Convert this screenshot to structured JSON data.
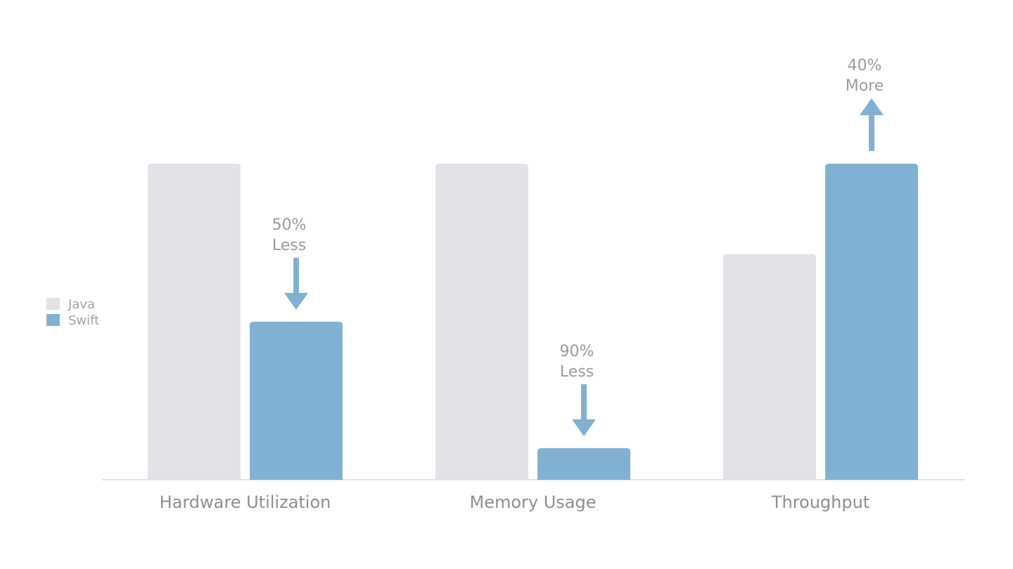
{
  "chart_data": {
    "type": "bar",
    "categories": [
      "Hardware Utilization",
      "Memory Usage",
      "Throughput"
    ],
    "series": [
      {
        "name": "Java",
        "values": [
          100,
          100,
          71.4
        ]
      },
      {
        "name": "Swift",
        "values": [
          50,
          10,
          100
        ]
      }
    ],
    "annotations": [
      {
        "category": "Hardware Utilization",
        "series": "Swift",
        "line1": "50%",
        "line2": "Less",
        "direction": "down"
      },
      {
        "category": "Memory Usage",
        "series": "Swift",
        "line1": "90%",
        "line2": "Less",
        "direction": "down"
      },
      {
        "category": "Throughput",
        "series": "Swift",
        "line1": "40%",
        "line2": "More",
        "direction": "up"
      }
    ],
    "legend": {
      "position": "left",
      "items": [
        {
          "label": "Java",
          "color": "#e1e3e8"
        },
        {
          "label": "Swift",
          "color": "#80b1d2"
        }
      ]
    },
    "ylim": [
      0,
      100
    ],
    "grid": false,
    "colors": {
      "java": "#e1e3e8",
      "swift": "#80b1d2",
      "axis": "#d4d7dc",
      "text": "#9a9a9a",
      "category_text": "#8e8e8e",
      "legend_text": "#a2a2a2"
    }
  }
}
